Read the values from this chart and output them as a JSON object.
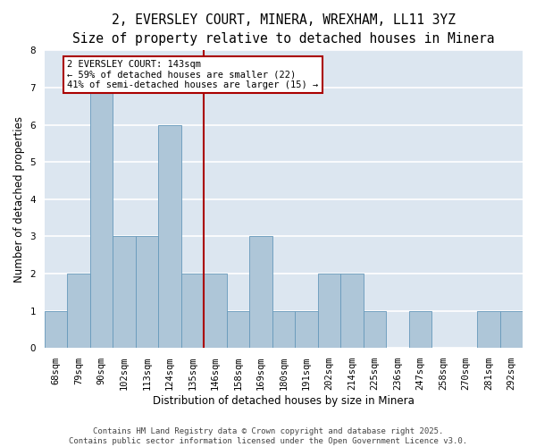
{
  "title_line1": "2, EVERSLEY COURT, MINERA, WREXHAM, LL11 3YZ",
  "title_line2": "Size of property relative to detached houses in Minera",
  "xlabel": "Distribution of detached houses by size in Minera",
  "ylabel": "Number of detached properties",
  "categories": [
    "68sqm",
    "79sqm",
    "90sqm",
    "102sqm",
    "113sqm",
    "124sqm",
    "135sqm",
    "146sqm",
    "158sqm",
    "169sqm",
    "180sqm",
    "191sqm",
    "202sqm",
    "214sqm",
    "225sqm",
    "236sqm",
    "247sqm",
    "258sqm",
    "270sqm",
    "281sqm",
    "292sqm"
  ],
  "values": [
    1,
    2,
    7,
    3,
    3,
    6,
    2,
    2,
    1,
    3,
    1,
    1,
    2,
    2,
    1,
    0,
    1,
    0,
    0,
    1,
    1
  ],
  "bar_color": "#aec6d8",
  "bar_edge_color": "#6699bb",
  "vline_x_index": 7,
  "vline_color": "#aa0000",
  "annotation_text": "2 EVERSLEY COURT: 143sqm\n← 59% of detached houses are smaller (22)\n41% of semi-detached houses are larger (15) →",
  "annotation_box_color": "white",
  "annotation_box_edge": "#aa0000",
  "ylim": [
    0,
    8
  ],
  "yticks": [
    0,
    1,
    2,
    3,
    4,
    5,
    6,
    7,
    8
  ],
  "background_color": "#dce6f0",
  "grid_color": "white",
  "footer_text": "Contains HM Land Registry data © Crown copyright and database right 2025.\nContains public sector information licensed under the Open Government Licence v3.0.",
  "title_fontsize": 10.5,
  "subtitle_fontsize": 9.5,
  "axis_label_fontsize": 8.5,
  "tick_fontsize": 7.5,
  "annotation_fontsize": 7.5,
  "footer_fontsize": 6.5
}
